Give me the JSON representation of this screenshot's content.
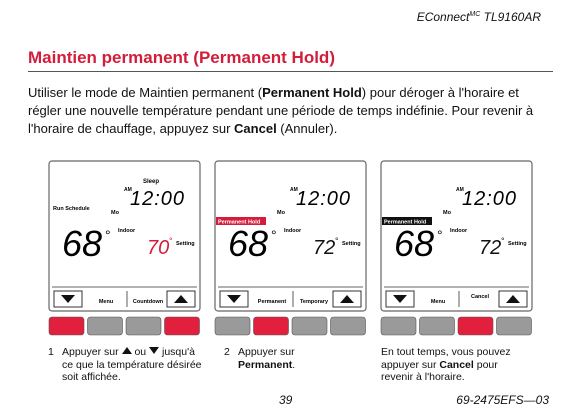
{
  "header": {
    "brand": "EConnect",
    "brand_sup": "MC",
    "model": "TL9160AR"
  },
  "title": "Maintien permanent (Permanent Hold)",
  "intro": [
    "Utiliser le mode de Maintien permanent (",
    "Permanent Hold",
    ") pour déroger à l'horaire et régler une nouvelle température pendant une période de temps indéfinie. Pour revenir à l'horaire de chauffage, appuyez sur ",
    "Cancel",
    " (Annuler)."
  ],
  "panels": [
    {
      "sleep": "Sleep",
      "am": "AM",
      "time": "12:00",
      "day": "Mo",
      "schedule": "Run Schedule",
      "indoor_temp": "68",
      "indoor_degree": "°",
      "indoor_label": "Indoor",
      "set_temp": "70",
      "set_degree": "°",
      "setting_label": "Setting",
      "left_button": "Menu",
      "right_button": "Countdown"
    },
    {
      "am": "AM",
      "time": "12:00",
      "day": "Mo",
      "hold": "Permanent Hold",
      "indoor_temp": "68",
      "indoor_degree": "°",
      "indoor_label": "Indoor",
      "set_temp": "72",
      "set_degree": "°",
      "setting_label": "Setting",
      "left_button": "Permanent",
      "right_button": "Temporary"
    },
    {
      "am": "AM",
      "time": "12:00",
      "day": "Mo",
      "hold": "Permanent Hold",
      "indoor_temp": "68",
      "indoor_degree": "°",
      "indoor_label": "Indoor",
      "set_temp": "72",
      "set_degree": "°",
      "setting_label": "Setting",
      "left_button": "Menu",
      "right_button": "Cancel"
    }
  ],
  "steps": [
    {
      "number": "1",
      "before": "Appuyer sur",
      "middle": "ou",
      "after": "jusqu'à ce que la température désirée soit affichée."
    },
    {
      "number": "2",
      "before": "Appuyer sur",
      "bold": "Permanent",
      "after": "."
    },
    {
      "before": "En tout temps, vous pouvez appuyer sur ",
      "bold": "Cancel",
      "after": " pour revenir à l'horaire."
    }
  ],
  "footer": {
    "page": "39",
    "code": "69-2475EFS—03"
  }
}
